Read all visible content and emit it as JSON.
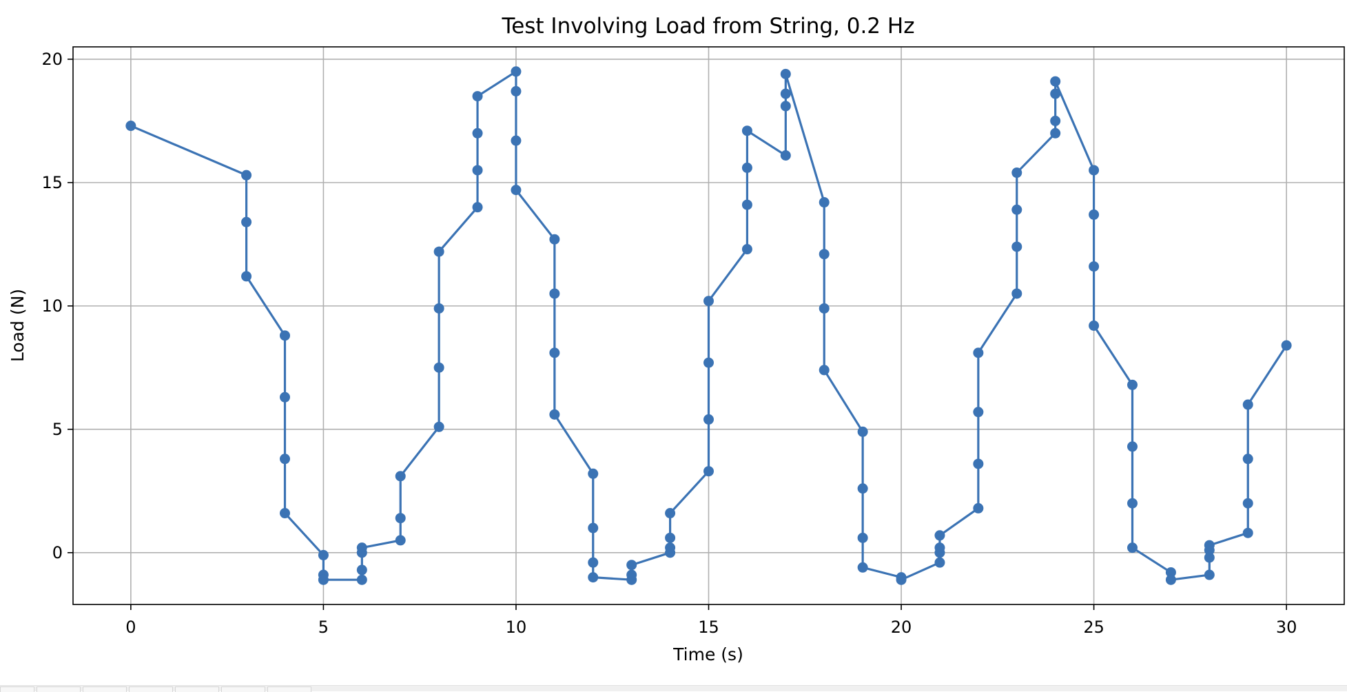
{
  "chart_data": {
    "type": "line",
    "title": "Test Involving Load from String, 0.2 Hz",
    "xlabel": "Time (s)",
    "ylabel": "Load (N)",
    "xlim": [
      -1.5,
      31.5
    ],
    "ylim": [
      -2.1,
      20.5
    ],
    "xticks": [
      0,
      5,
      10,
      15,
      20,
      25,
      30
    ],
    "yticks": [
      0,
      5,
      10,
      15,
      20
    ],
    "grid": true,
    "marker": "circle",
    "color": "#3b73b4",
    "series": [
      {
        "x": [
          0,
          3,
          3,
          3,
          4,
          4,
          4,
          4,
          5,
          5,
          5,
          6,
          6,
          6,
          6,
          7,
          7,
          7,
          8,
          8,
          8,
          8,
          9,
          9,
          9,
          9,
          10,
          10,
          10,
          10,
          11,
          11,
          11,
          11,
          12,
          12,
          12,
          12,
          13,
          13,
          13,
          14,
          14,
          14,
          14,
          15,
          15,
          15,
          15,
          16,
          16,
          16,
          16,
          17,
          17,
          17,
          17,
          18,
          18,
          18,
          18,
          19,
          19,
          19,
          19,
          20,
          20,
          21,
          21,
          21,
          21,
          22,
          22,
          22,
          22,
          23,
          23,
          23,
          23,
          24,
          24,
          24,
          24,
          25,
          25,
          25,
          25,
          26,
          26,
          26,
          26,
          27,
          27,
          28,
          28,
          28,
          28,
          29,
          29,
          29,
          29,
          30
        ],
        "y": [
          17.3,
          15.3,
          13.4,
          11.2,
          8.8,
          6.3,
          3.8,
          1.6,
          -0.1,
          -0.9,
          -1.1,
          -1.1,
          -0.7,
          0.0,
          0.2,
          0.5,
          1.4,
          3.1,
          5.1,
          7.5,
          9.9,
          12.2,
          14.0,
          15.5,
          17.0,
          18.5,
          19.5,
          18.7,
          16.7,
          14.7,
          12.7,
          10.5,
          8.1,
          5.6,
          3.2,
          1.0,
          -0.4,
          -1.0,
          -1.1,
          -0.9,
          -0.5,
          0.0,
          0.2,
          0.6,
          1.6,
          3.3,
          5.4,
          7.7,
          10.2,
          12.3,
          14.1,
          15.6,
          17.1,
          16.1,
          18.1,
          18.6,
          19.4,
          14.2,
          12.1,
          9.9,
          7.4,
          4.9,
          2.6,
          0.6,
          -0.6,
          -1.0,
          -1.1,
          -0.4,
          0.0,
          0.2,
          0.7,
          1.8,
          3.6,
          5.7,
          8.1,
          10.5,
          12.4,
          13.9,
          15.4,
          17.0,
          17.5,
          18.6,
          19.1,
          15.5,
          13.7,
          11.6,
          9.2,
          6.8,
          4.3,
          2.0,
          0.2,
          -0.8,
          -1.1,
          -0.9,
          -0.2,
          0.1,
          0.3,
          0.8,
          2.0,
          3.8,
          6.0,
          8.4
        ]
      }
    ]
  }
}
